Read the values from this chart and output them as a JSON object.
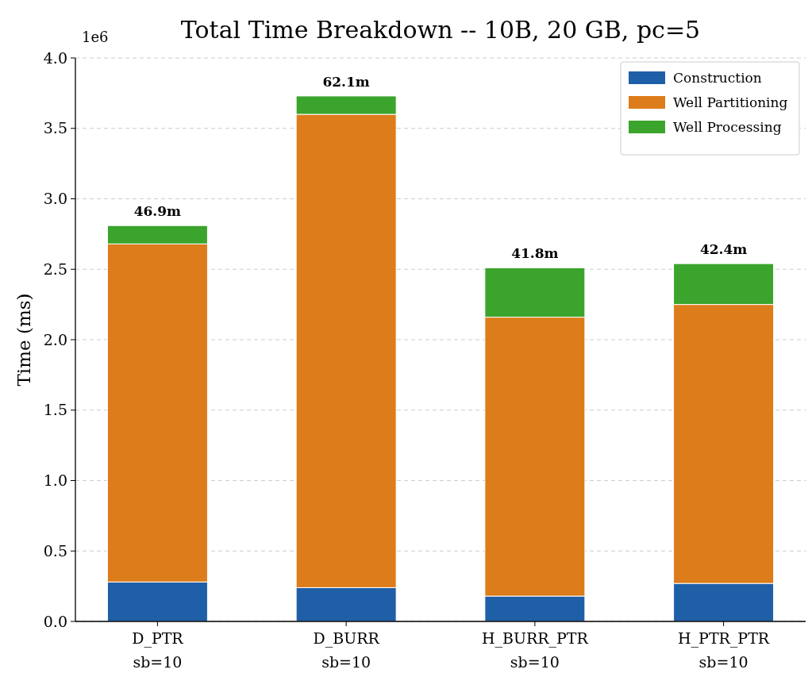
{
  "chart_data": {
    "type": "bar",
    "title": "Total Time Breakdown -- 10B, 20 GB, pc=5",
    "ylabel": "Time (ms)",
    "categories": [
      "D_PTR\nsb=10",
      "D_BURR\nsb=10",
      "H_BURR_PTR\nsb=10",
      "H_PTR_PTR\nsb=10"
    ],
    "stacked": true,
    "series": [
      {
        "name": "Construction",
        "color": "#1f5fa8",
        "values": [
          0.28,
          0.24,
          0.18,
          0.27
        ]
      },
      {
        "name": "Well Partitioning",
        "color": "#dd7c1a",
        "values": [
          2.4,
          3.36,
          1.98,
          1.98
        ]
      },
      {
        "name": "Well Processing",
        "color": "#3ba42c",
        "values": [
          0.13,
          0.13,
          0.35,
          0.29
        ]
      }
    ],
    "ylim": [
      0,
      4.0
    ],
    "yticks": [
      {
        "value": 0,
        "label": "0.0"
      },
      {
        "value": 0.5,
        "label": "0.5"
      },
      {
        "value": 1,
        "label": "1.0"
      },
      {
        "value": 1.5,
        "label": "1.5"
      },
      {
        "value": 2,
        "label": "2.0"
      },
      {
        "value": 2.5,
        "label": "2.5"
      },
      {
        "value": 3,
        "label": "3.0"
      },
      {
        "value": 3.5,
        "label": "3.5"
      },
      {
        "value": 4,
        "label": "4.0"
      }
    ],
    "annotations": [
      "1e6",
      {
        "text": "46.9m",
        "x": "D_PTR\nsb=10",
        "y": 2.81
      },
      {
        "text": "62.1m",
        "x": "D_BURR\nsb=10",
        "y": 3.73
      },
      {
        "text": "41.8m",
        "x": "H_BURR_PTR\nsb=10",
        "y": 2.51
      },
      {
        "text": "42.4m",
        "x": "H_PTR_PTR\nsb=10",
        "y": 2.54
      }
    ],
    "grid": "y",
    "legend": "top right"
  }
}
